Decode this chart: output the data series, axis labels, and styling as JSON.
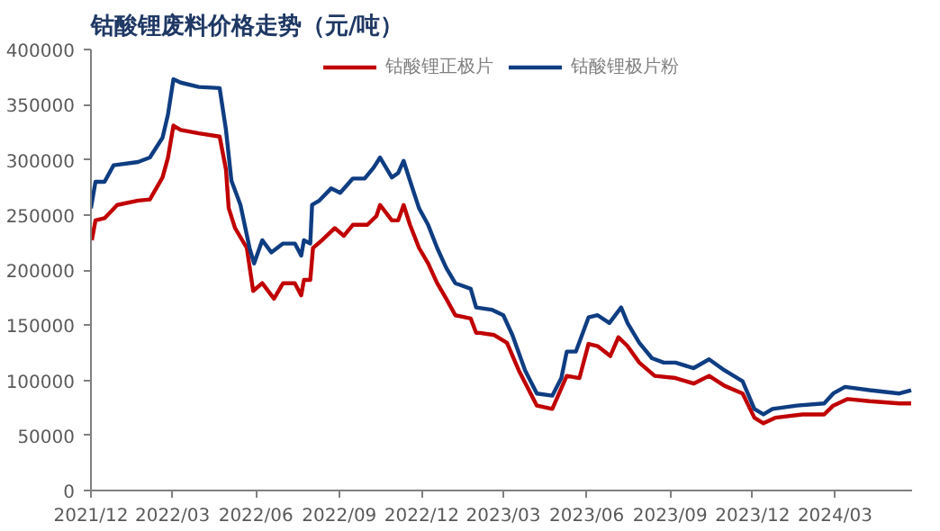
{
  "chart_data": {
    "type": "line",
    "title": "钴酸锂废料价格走势（元/吨）",
    "legend": "top",
    "grid": false,
    "marker": "none",
    "line_style": "solid",
    "xlim": [
      "2021-12-01",
      "2024-05-25"
    ],
    "xticks": [
      {
        "value": "2021-12-01",
        "label": "2021/12"
      },
      {
        "value": "2022-03-01",
        "label": "2022/03"
      },
      {
        "value": "2022-06-01",
        "label": "2022/06"
      },
      {
        "value": "2022-09-01",
        "label": "2022/09"
      },
      {
        "value": "2022-12-01",
        "label": "2022/12"
      },
      {
        "value": "2023-03-01",
        "label": "2023/03"
      },
      {
        "value": "2023-06-01",
        "label": "2023/06"
      },
      {
        "value": "2023-09-01",
        "label": "2023/09"
      },
      {
        "value": "2023-12-01",
        "label": "2023/12"
      },
      {
        "value": "2024-03-01",
        "label": "2024/03"
      }
    ],
    "ylim": [
      0,
      400000
    ],
    "yticks": [
      0,
      50000,
      100000,
      150000,
      200000,
      250000,
      300000,
      350000,
      400000
    ],
    "series": [
      {
        "name": "钴酸锂正极片",
        "color": "#c00000",
        "x": [
          "2021-12-02",
          "2021-12-06",
          "2021-12-16",
          "2021-12-30",
          "2022-01-22",
          "2022-02-04",
          "2022-02-18",
          "2022-02-24",
          "2022-03-02",
          "2022-03-10",
          "2022-03-30",
          "2022-04-22",
          "2022-04-29",
          "2022-05-02",
          "2022-05-09",
          "2022-05-22",
          "2022-05-29",
          "2022-06-08",
          "2022-06-21",
          "2022-07-01",
          "2022-07-14",
          "2022-07-21",
          "2022-07-24",
          "2022-07-31",
          "2022-08-03",
          "2022-08-13",
          "2022-08-27",
          "2022-09-06",
          "2022-09-16",
          "2022-10-02",
          "2022-10-12",
          "2022-10-16",
          "2022-10-29",
          "2022-11-05",
          "2022-11-11",
          "2022-11-18",
          "2022-11-28",
          "2022-12-08",
          "2022-12-18",
          "2022-12-28",
          "2023-01-07",
          "2023-01-24",
          "2023-01-30",
          "2023-02-03",
          "2023-02-19",
          "2023-03-05",
          "2023-03-18",
          "2023-04-07",
          "2023-04-24",
          "2023-05-10",
          "2023-05-24",
          "2023-06-03",
          "2023-06-13",
          "2023-06-27",
          "2023-07-06",
          "2023-07-16",
          "2023-07-29",
          "2023-08-15",
          "2023-09-07",
          "2023-09-27",
          "2023-10-14",
          "2023-10-31",
          "2023-11-20",
          "2023-12-03",
          "2023-12-13",
          "2023-12-26",
          "2024-01-25",
          "2024-02-18",
          "2024-02-28",
          "2024-03-15",
          "2024-04-08",
          "2024-05-11",
          "2024-05-24"
        ],
        "values": [
          227000,
          245000,
          247000,
          259000,
          263000,
          264000,
          284000,
          302000,
          331000,
          327000,
          324000,
          321000,
          291000,
          256000,
          238000,
          220000,
          181000,
          188000,
          174000,
          188000,
          188000,
          177000,
          191000,
          191000,
          220000,
          227000,
          238000,
          231000,
          241000,
          241000,
          249000,
          259000,
          245000,
          245000,
          259000,
          241000,
          220000,
          206000,
          188000,
          174000,
          159000,
          156000,
          143000,
          143000,
          141000,
          134000,
          109000,
          77000,
          74000,
          104000,
          102000,
          133000,
          131000,
          122000,
          139000,
          131000,
          116000,
          104000,
          102000,
          97000,
          104000,
          95000,
          88000,
          66000,
          61000,
          66000,
          69000,
          69000,
          77000,
          83000,
          81000,
          79000,
          79000
        ]
      },
      {
        "name": "钴酸锂极片粉",
        "color": "#0f3d82",
        "x": [
          "2021-12-01",
          "2021-12-06",
          "2021-12-16",
          "2021-12-26",
          "2022-01-22",
          "2022-02-04",
          "2022-02-18",
          "2022-02-24",
          "2022-03-02",
          "2022-03-10",
          "2022-03-30",
          "2022-04-22",
          "2022-04-29",
          "2022-05-05",
          "2022-05-15",
          "2022-05-25",
          "2022-05-30",
          "2022-06-08",
          "2022-06-18",
          "2022-07-01",
          "2022-07-14",
          "2022-07-21",
          "2022-07-24",
          "2022-07-31",
          "2022-08-02",
          "2022-08-10",
          "2022-08-23",
          "2022-09-02",
          "2022-09-16",
          "2022-09-29",
          "2022-10-09",
          "2022-10-16",
          "2022-10-29",
          "2022-11-05",
          "2022-11-11",
          "2022-11-18",
          "2022-11-28",
          "2022-12-08",
          "2022-12-18",
          "2022-12-28",
          "2023-01-07",
          "2023-01-24",
          "2023-01-30",
          "2023-02-16",
          "2023-03-01",
          "2023-03-11",
          "2023-03-25",
          "2023-04-07",
          "2023-04-24",
          "2023-05-04",
          "2023-05-10",
          "2023-05-20",
          "2023-06-03",
          "2023-06-13",
          "2023-06-26",
          "2023-07-09",
          "2023-07-16",
          "2023-07-29",
          "2023-08-12",
          "2023-08-25",
          "2023-09-07",
          "2023-09-27",
          "2023-10-14",
          "2023-10-31",
          "2023-11-20",
          "2023-12-03",
          "2023-12-13",
          "2023-12-23",
          "2024-01-19",
          "2024-02-18",
          "2024-02-28",
          "2024-03-12",
          "2024-04-08",
          "2024-05-11",
          "2024-05-24"
        ],
        "values": [
          256000,
          280000,
          280000,
          295000,
          298000,
          302000,
          320000,
          341000,
          373000,
          370000,
          366000,
          365000,
          327000,
          281000,
          259000,
          220000,
          206000,
          227000,
          216000,
          224000,
          224000,
          213000,
          227000,
          224000,
          259000,
          263000,
          274000,
          270000,
          283000,
          283000,
          293000,
          302000,
          284000,
          288000,
          299000,
          281000,
          256000,
          241000,
          220000,
          202000,
          188000,
          183000,
          166000,
          164000,
          159000,
          141000,
          109000,
          88000,
          86000,
          102000,
          126000,
          126000,
          157000,
          159000,
          152000,
          166000,
          152000,
          134000,
          120000,
          116000,
          116000,
          111000,
          119000,
          109000,
          99000,
          74000,
          69000,
          74000,
          77000,
          79000,
          88000,
          94000,
          91000,
          88000,
          91000
        ]
      }
    ]
  }
}
